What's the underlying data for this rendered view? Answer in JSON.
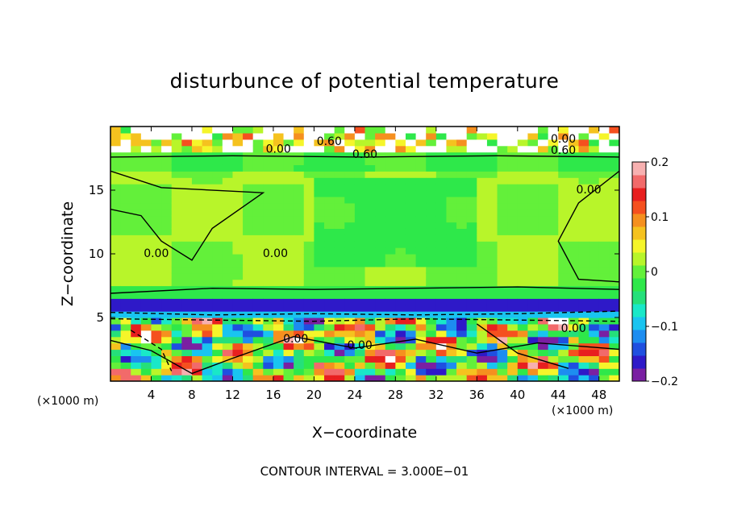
{
  "chart_data": {
    "type": "heatmap",
    "title": "disturbunce of potential temperature",
    "xlabel": "X−coordinate",
    "ylabel": "Z−coordinate",
    "x_unit_label": "(×1000 m)",
    "x_unit_label_right": "(×1000 m)",
    "footer": "CONTOUR INTERVAL = 3.000E−01",
    "x_ticks": [
      "4",
      "8",
      "12",
      "16",
      "20",
      "24",
      "28",
      "32",
      "36",
      "40",
      "44",
      "48"
    ],
    "x_tick_values": [
      4,
      8,
      12,
      16,
      20,
      24,
      28,
      32,
      36,
      40,
      44,
      48
    ],
    "y_ticks": [
      "5",
      "10",
      "15"
    ],
    "y_tick_values": [
      5,
      10,
      15
    ],
    "xlim": [
      0,
      50
    ],
    "ylim": [
      0,
      20
    ],
    "colorbar": {
      "range": [
        -0.2,
        0.2
      ],
      "ticks": [
        "0.2",
        "0.1",
        "0",
        "−0.1",
        "−0.2"
      ],
      "tick_values": [
        0.2,
        0.1,
        0,
        -0.1,
        -0.2
      ],
      "colors": [
        "#7a1fa2",
        "#2e19c8",
        "#1f4fe0",
        "#1d8df0",
        "#19c4f0",
        "#19e8c8",
        "#25e07a",
        "#2ee84a",
        "#63f03a",
        "#b8f52a",
        "#f5f52a",
        "#f5c21f",
        "#f5901f",
        "#f5501f",
        "#e81f1f",
        "#f26a6a",
        "#f7b0b0"
      ]
    },
    "contour_labels": [
      {
        "text": "0.60",
        "x": 21.5,
        "y": 18.8
      },
      {
        "text": "0.60",
        "x": 25.0,
        "y": 17.8
      },
      {
        "text": "0.00",
        "x": 16.5,
        "y": 18.2
      },
      {
        "text": "0.00",
        "x": 44.5,
        "y": 19.0
      },
      {
        "text": "0.60",
        "x": 44.5,
        "y": 18.1
      },
      {
        "text": "0.00",
        "x": 4.5,
        "y": 10.0
      },
      {
        "text": "0.00",
        "x": 16.2,
        "y": 10.0
      },
      {
        "text": "0.00",
        "x": 45.5,
        "y": 4.1
      },
      {
        "text": "0.00",
        "x": 47.0,
        "y": 15.0
      },
      {
        "text": "0.00",
        "x": 24.5,
        "y": 2.8
      },
      {
        "text": "0.00",
        "x": 18.2,
        "y": 3.3
      }
    ]
  }
}
